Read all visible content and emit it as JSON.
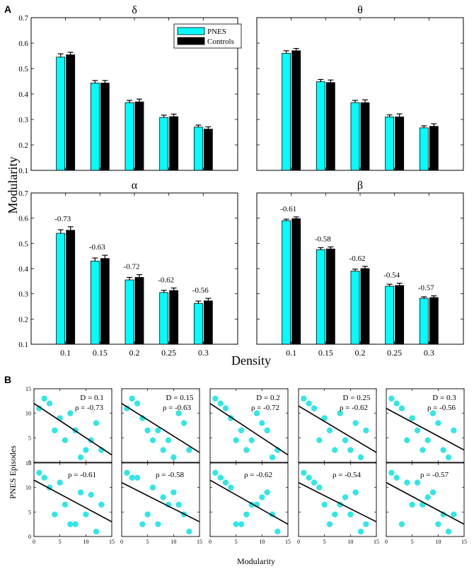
{
  "panel_a_letter": "A",
  "panel_b_letter": "B",
  "colors": {
    "pnes": "#00FFFF",
    "controls": "#000000",
    "scatter": "#33E6E6",
    "fit": "#000000"
  },
  "legend": {
    "pnes": "PNES",
    "controls": "Controls"
  },
  "a_ylabel": "Modularity",
  "a_xlabel": "Density",
  "b_ylabel": "PNES Episodes",
  "b_xlabel": "Modularity",
  "chart_data": [
    {
      "type": "bar",
      "panel": "A",
      "title": "δ",
      "categories": [
        "0.1",
        "0.15",
        "0.2",
        "0.25",
        "0.3"
      ],
      "ylim": [
        0.1,
        0.7
      ],
      "yticks": [
        "0.1",
        "0.2",
        "0.3",
        "0.4",
        "0.5",
        "0.6",
        "0.7"
      ],
      "series": [
        {
          "name": "PNES",
          "values": [
            0.545,
            0.443,
            0.366,
            0.308,
            0.27
          ],
          "errors": [
            0.013,
            0.01,
            0.009,
            0.009,
            0.008
          ]
        },
        {
          "name": "Controls",
          "values": [
            0.554,
            0.443,
            0.369,
            0.311,
            0.262
          ],
          "errors": [
            0.01,
            0.01,
            0.011,
            0.01,
            0.009
          ]
        }
      ],
      "annotations": []
    },
    {
      "type": "bar",
      "panel": "A",
      "title": "θ",
      "categories": [
        "0.1",
        "0.15",
        "0.2",
        "0.25",
        "0.3"
      ],
      "ylim": [
        0.1,
        0.7
      ],
      "yticks": [],
      "series": [
        {
          "name": "PNES",
          "values": [
            0.56,
            0.448,
            0.366,
            0.31,
            0.267
          ],
          "errors": [
            0.01,
            0.009,
            0.009,
            0.008,
            0.008
          ]
        },
        {
          "name": "Controls",
          "values": [
            0.57,
            0.445,
            0.366,
            0.31,
            0.273
          ],
          "errors": [
            0.009,
            0.01,
            0.011,
            0.012,
            0.01
          ]
        }
      ],
      "annotations": []
    },
    {
      "type": "bar",
      "panel": "A",
      "title": "α",
      "categories": [
        "0.1",
        "0.15",
        "0.2",
        "0.25",
        "0.3"
      ],
      "ylim": [
        0.1,
        0.7
      ],
      "yticks": [
        "0.1",
        "0.2",
        "0.3",
        "0.4",
        "0.5",
        "0.6",
        "0.7"
      ],
      "series": [
        {
          "name": "PNES",
          "values": [
            0.54,
            0.43,
            0.355,
            0.305,
            0.262
          ],
          "errors": [
            0.014,
            0.012,
            0.01,
            0.009,
            0.009
          ]
        },
        {
          "name": "Controls",
          "values": [
            0.552,
            0.44,
            0.365,
            0.313,
            0.272
          ],
          "errors": [
            0.014,
            0.013,
            0.011,
            0.01,
            0.01
          ]
        }
      ],
      "annotations": [
        "-0.73",
        "-0.63",
        "-0.72",
        "-0.62",
        "-0.56"
      ]
    },
    {
      "type": "bar",
      "panel": "A",
      "title": "β",
      "categories": [
        "0.1",
        "0.15",
        "0.2",
        "0.25",
        "0.3"
      ],
      "ylim": [
        0.1,
        0.7
      ],
      "yticks": [],
      "series": [
        {
          "name": "PNES",
          "values": [
            0.59,
            0.475,
            0.39,
            0.33,
            0.282
          ],
          "errors": [
            0.006,
            0.008,
            0.008,
            0.008,
            0.006
          ]
        },
        {
          "name": "Controls",
          "values": [
            0.598,
            0.478,
            0.4,
            0.333,
            0.285
          ],
          "errors": [
            0.007,
            0.008,
            0.009,
            0.009,
            0.007
          ]
        }
      ],
      "annotations": [
        "-0.61",
        "-0.58",
        "-0.62",
        "-0.54",
        "-0.57"
      ]
    }
  ],
  "scatter_data": {
    "type": "scatter",
    "xlim": [
      0,
      15
    ],
    "ylim": [
      0,
      15
    ],
    "xticks": [
      "0",
      "5",
      "10",
      "15"
    ],
    "yticks": [
      "0",
      "5",
      "10",
      "15"
    ],
    "panels": [
      {
        "d_label": "D = 0.1",
        "rho_label": "ρ = -0.73",
        "points": [
          [
            1,
            11
          ],
          [
            2,
            13
          ],
          [
            3,
            12
          ],
          [
            4,
            6.5
          ],
          [
            5,
            9
          ],
          [
            6,
            4.5
          ],
          [
            7,
            10
          ],
          [
            8,
            6.5
          ],
          [
            9,
            1
          ],
          [
            10,
            2.5
          ],
          [
            11,
            4.5
          ],
          [
            12,
            8
          ],
          [
            13,
            2.5
          ]
        ],
        "fit": [
          [
            0,
            12
          ],
          [
            15,
            1.5
          ]
        ]
      },
      {
        "d_label": "D = 0.15",
        "rho_label": "ρ = -0.63",
        "points": [
          [
            1,
            11
          ],
          [
            2,
            13
          ],
          [
            3,
            12
          ],
          [
            4,
            9
          ],
          [
            5,
            6.5
          ],
          [
            6,
            4.5
          ],
          [
            7,
            6.5
          ],
          [
            8,
            2.5
          ],
          [
            9,
            4.5
          ],
          [
            10,
            1
          ],
          [
            11,
            10
          ],
          [
            12,
            8
          ],
          [
            13,
            2.5
          ]
        ],
        "fit": [
          [
            0,
            12
          ],
          [
            15,
            2
          ]
        ]
      },
      {
        "d_label": "D = 0.2",
        "rho_label": "ρ = -0.72",
        "points": [
          [
            1,
            13
          ],
          [
            2,
            12
          ],
          [
            3,
            11
          ],
          [
            4,
            9
          ],
          [
            5,
            4.5
          ],
          [
            6,
            6.5
          ],
          [
            7,
            2.5
          ],
          [
            8,
            4.5
          ],
          [
            9,
            10
          ],
          [
            10,
            8
          ],
          [
            11,
            6.5
          ],
          [
            12,
            1
          ],
          [
            13,
            2.5
          ]
        ],
        "fit": [
          [
            0,
            12
          ],
          [
            15,
            1.5
          ]
        ]
      },
      {
        "d_label": "D = 0.25",
        "rho_label": "ρ = -0.62",
        "points": [
          [
            1,
            13
          ],
          [
            2,
            12
          ],
          [
            3,
            11
          ],
          [
            4,
            4.5
          ],
          [
            5,
            9
          ],
          [
            6,
            6.5
          ],
          [
            7,
            2.5
          ],
          [
            8,
            10
          ],
          [
            9,
            4.5
          ],
          [
            10,
            2.5
          ],
          [
            11,
            8
          ],
          [
            12,
            1
          ],
          [
            13,
            6.5
          ]
        ],
        "fit": [
          [
            0,
            11.5
          ],
          [
            15,
            2
          ]
        ]
      },
      {
        "d_label": "D = 0.3",
        "rho_label": "ρ = -0.56",
        "points": [
          [
            1,
            13
          ],
          [
            2,
            12
          ],
          [
            3,
            11
          ],
          [
            4,
            4.5
          ],
          [
            5,
            9
          ],
          [
            6,
            6.5
          ],
          [
            7,
            2.5
          ],
          [
            8,
            4.5
          ],
          [
            9,
            10
          ],
          [
            10,
            8
          ],
          [
            11,
            2.5
          ],
          [
            12,
            1
          ],
          [
            13,
            6.5
          ]
        ],
        "fit": [
          [
            0,
            11
          ],
          [
            15,
            2.5
          ]
        ]
      },
      {
        "d_label": "",
        "rho_label": "ρ = -0.61",
        "points": [
          [
            1,
            13
          ],
          [
            2,
            12
          ],
          [
            3,
            10
          ],
          [
            4,
            4.5
          ],
          [
            5,
            11
          ],
          [
            6,
            6.5
          ],
          [
            7,
            2.5
          ],
          [
            8,
            2.5
          ],
          [
            9,
            9
          ],
          [
            10,
            4.5
          ],
          [
            11,
            8.5
          ],
          [
            12,
            1
          ],
          [
            13,
            6.5
          ]
        ],
        "fit": [
          [
            0,
            11.5
          ],
          [
            15,
            3
          ]
        ]
      },
      {
        "d_label": "",
        "rho_label": "ρ = -0.58",
        "points": [
          [
            1,
            13
          ],
          [
            2,
            12
          ],
          [
            3,
            12
          ],
          [
            4,
            2.5
          ],
          [
            5,
            4.5
          ],
          [
            6,
            10
          ],
          [
            7,
            2.5
          ],
          [
            8,
            8
          ],
          [
            9,
            6.5
          ],
          [
            10,
            9
          ],
          [
            11,
            6.5
          ],
          [
            12,
            4.5
          ],
          [
            13,
            1
          ]
        ],
        "fit": [
          [
            0,
            11
          ],
          [
            15,
            3
          ]
        ]
      },
      {
        "d_label": "",
        "rho_label": "ρ = -0.62",
        "points": [
          [
            1,
            13
          ],
          [
            2,
            12
          ],
          [
            3,
            11
          ],
          [
            4,
            10
          ],
          [
            5,
            2.5
          ],
          [
            6,
            2.5
          ],
          [
            7,
            4.5
          ],
          [
            8,
            6.5
          ],
          [
            9,
            6.5
          ],
          [
            10,
            8
          ],
          [
            11,
            9
          ],
          [
            12,
            4.5
          ],
          [
            13,
            1
          ]
        ],
        "fit": [
          [
            0,
            11.5
          ],
          [
            15,
            2.5
          ]
        ]
      },
      {
        "d_label": "",
        "rho_label": "ρ = -0.54",
        "points": [
          [
            1,
            13
          ],
          [
            2,
            12
          ],
          [
            3,
            11
          ],
          [
            4,
            10
          ],
          [
            5,
            6.5
          ],
          [
            6,
            2.5
          ],
          [
            7,
            4.5
          ],
          [
            8,
            6.5
          ],
          [
            9,
            8
          ],
          [
            10,
            4.5
          ],
          [
            11,
            9
          ],
          [
            12,
            1
          ],
          [
            13,
            2.5
          ]
        ],
        "fit": [
          [
            0,
            11
          ],
          [
            15,
            3
          ]
        ]
      },
      {
        "d_label": "",
        "rho_label": "ρ = -0.57",
        "points": [
          [
            1,
            13
          ],
          [
            2,
            12
          ],
          [
            3,
            2.5
          ],
          [
            4,
            11
          ],
          [
            5,
            6.5
          ],
          [
            6,
            11
          ],
          [
            7,
            6.5
          ],
          [
            8,
            8
          ],
          [
            9,
            9
          ],
          [
            10,
            2.5
          ],
          [
            11,
            4.5
          ],
          [
            12,
            1
          ],
          [
            13,
            4.5
          ]
        ],
        "fit": [
          [
            0,
            11
          ],
          [
            15,
            2.5
          ]
        ]
      }
    ]
  }
}
